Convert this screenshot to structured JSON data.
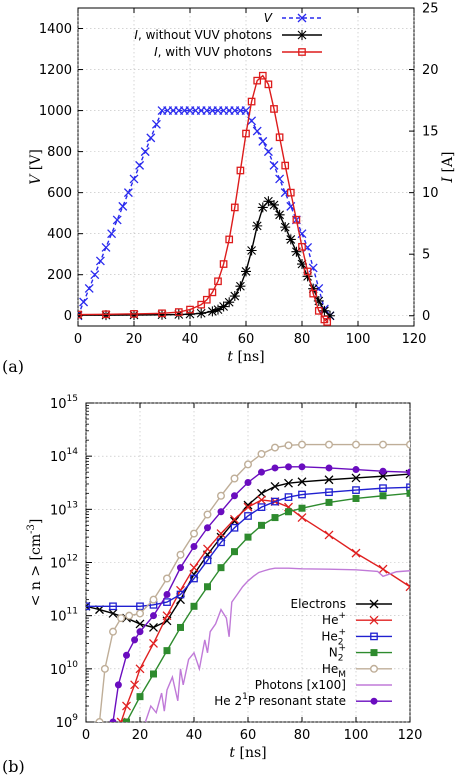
{
  "chart_data": [
    {
      "panel_label": "(a)",
      "type": "line",
      "xlabel_var": "t",
      "xlabel_unit": "[ns]",
      "ylabel_var": "V",
      "ylabel_unit": "[V]",
      "y2label_var": "I",
      "y2label_unit": "[A]",
      "xlim": [
        0,
        120
      ],
      "ylim": [
        -50,
        1500
      ],
      "y2lim": [
        -0.833,
        25
      ],
      "xticks": [
        0,
        20,
        40,
        60,
        80,
        100,
        120
      ],
      "yticks": [
        0,
        200,
        400,
        600,
        800,
        1000,
        1200,
        1400
      ],
      "y2ticks": [
        0,
        5,
        10,
        15,
        20,
        25
      ],
      "legend_position": "top-right",
      "series": [
        {
          "name": "V",
          "name_style": "italic",
          "axis": "left",
          "color": "#2a2aee",
          "dash": "dashed",
          "marker": "x",
          "x": [
            0,
            2,
            4,
            6,
            8,
            10,
            12,
            14,
            16,
            18,
            20,
            22,
            24,
            26,
            28,
            30,
            32,
            34,
            36,
            38,
            40,
            42,
            44,
            46,
            48,
            50,
            52,
            54,
            56,
            58,
            60,
            62,
            64,
            66,
            68,
            70,
            72,
            74,
            76,
            78,
            80,
            82,
            84,
            86,
            88,
            90
          ],
          "y": [
            0,
            67,
            133,
            200,
            267,
            333,
            400,
            467,
            533,
            600,
            667,
            733,
            800,
            867,
            933,
            1000,
            1000,
            1000,
            1000,
            1000,
            1000,
            1000,
            1000,
            1000,
            1000,
            1000,
            1000,
            1000,
            1000,
            1000,
            1000,
            950,
            900,
            850,
            800,
            733,
            667,
            600,
            533,
            467,
            400,
            333,
            233,
            133,
            33,
            0
          ]
        },
        {
          "name": "I, without VUV photons",
          "name_style": "italic-first",
          "axis": "right",
          "color": "#000000",
          "dash": "solid",
          "marker": "star",
          "x": [
            0,
            10,
            20,
            30,
            36,
            40,
            44,
            48,
            50,
            52,
            54,
            56,
            58,
            60,
            62,
            64,
            66,
            68,
            70,
            72,
            74,
            76,
            78,
            80,
            82,
            84,
            86,
            88,
            90
          ],
          "y": [
            0.05,
            0.05,
            0.06,
            0.08,
            0.1,
            0.13,
            0.2,
            0.35,
            0.5,
            0.75,
            1.1,
            1.6,
            2.4,
            3.6,
            5.3,
            7.3,
            8.8,
            9.3,
            9.0,
            8.2,
            7.2,
            6.2,
            5.2,
            4.2,
            3.2,
            2.2,
            1.2,
            0.4,
            0.0
          ]
        },
        {
          "name": "I, with VUV photons",
          "name_style": "italic-first",
          "axis": "right",
          "color": "#dd1c1c",
          "dash": "solid",
          "marker": "square",
          "x": [
            0,
            10,
            20,
            30,
            36,
            40,
            44,
            46,
            48,
            50,
            52,
            54,
            56,
            58,
            60,
            62,
            64,
            66,
            68,
            70,
            72,
            74,
            76,
            78,
            80,
            82,
            84,
            86,
            88,
            89
          ],
          "y": [
            0.1,
            0.12,
            0.15,
            0.2,
            0.3,
            0.5,
            0.9,
            1.3,
            1.9,
            2.8,
            4.2,
            6.2,
            8.8,
            11.8,
            14.8,
            17.4,
            19.1,
            19.5,
            18.8,
            16.8,
            14.5,
            12.2,
            10.0,
            7.8,
            5.6,
            3.6,
            1.8,
            0.4,
            -0.3,
            -0.5
          ]
        }
      ]
    },
    {
      "panel_label": "(b)",
      "type": "line",
      "yscale": "log",
      "xlabel_var": "t",
      "xlabel_unit": "[ns]",
      "ylabel_text": "< n > [cm",
      "ylabel_sup": "-3",
      "ylabel_close": "]",
      "xlim": [
        0,
        120
      ],
      "ylim": [
        1000000000.0,
        1000000000000000.0
      ],
      "xticks": [
        0,
        20,
        40,
        60,
        80,
        100,
        120
      ],
      "ytick_base": "10",
      "ytick_exponents": [
        9,
        10,
        11,
        12,
        13,
        14,
        15
      ],
      "legend_position": "bottom-right",
      "series": [
        {
          "name": "Electrons",
          "color": "#000000",
          "marker": "x",
          "x": [
            0,
            5,
            10,
            15,
            20,
            25,
            30,
            35,
            40,
            45,
            50,
            55,
            60,
            65,
            70,
            75,
            80,
            90,
            100,
            110,
            120
          ],
          "y": [
            150000000000.0,
            130000000000.0,
            110000000000.0,
            90000000000.0,
            70000000000.0,
            60000000000.0,
            80000000000.0,
            200000000000.0,
            600000000000.0,
            1400000000000.0,
            3000000000000.0,
            6000000000000.0,
            12000000000000.0,
            20000000000000.0,
            27000000000000.0,
            31000000000000.0,
            33000000000000.0,
            36000000000000.0,
            39000000000000.0,
            42000000000000.0,
            46000000000000.0
          ]
        },
        {
          "name": "He+",
          "name_base": "He",
          "name_sup": "+",
          "color": "#e02020",
          "marker": "x",
          "x": [
            13,
            15,
            18,
            20,
            25,
            30,
            35,
            40,
            45,
            50,
            55,
            60,
            65,
            70,
            75,
            80,
            90,
            100,
            110,
            120
          ],
          "y": [
            1000000000.0,
            2000000000.0,
            5000000000.0,
            10000000000.0,
            30000000000.0,
            100000000000.0,
            300000000000.0,
            800000000000.0,
            1800000000000.0,
            3500000000000.0,
            6500000000000.0,
            11000000000000.0,
            15000000000000.0,
            14000000000000.0,
            11000000000000.0,
            7000000000000.0,
            3300000000000.0,
            1500000000000.0,
            750000000000.0,
            350000000000.0
          ]
        },
        {
          "name": "He2+",
          "name_base": "He",
          "name_sub": "2",
          "name_sup": "+",
          "color": "#2020d0",
          "marker": "square",
          "x": [
            0,
            10,
            20,
            25,
            30,
            35,
            40,
            45,
            50,
            55,
            60,
            65,
            70,
            75,
            80,
            90,
            100,
            110,
            120
          ],
          "y": [
            150000000000.0,
            150000000000.0,
            150000000000.0,
            160000000000.0,
            180000000000.0,
            250000000000.0,
            500000000000.0,
            1100000000000.0,
            2400000000000.0,
            4500000000000.0,
            7500000000000.0,
            11000000000000.0,
            14000000000000.0,
            17000000000000.0,
            19000000000000.0,
            21000000000000.0,
            23000000000000.0,
            25000000000000.0,
            26000000000000.0
          ]
        },
        {
          "name": "N2+",
          "name_base": "N",
          "name_sub": "2",
          "name_sup": "+",
          "color": "#2e8b2e",
          "marker": "square-filled",
          "x": [
            15,
            20,
            25,
            30,
            35,
            40,
            45,
            50,
            55,
            60,
            65,
            70,
            75,
            80,
            90,
            100,
            110,
            120
          ],
          "y": [
            1000000000.0,
            3000000000.0,
            8000000000.0,
            22000000000.0,
            60000000000.0,
            150000000000.0,
            350000000000.0,
            800000000000.0,
            1600000000000.0,
            3000000000000.0,
            5000000000000.0,
            7000000000000.0,
            9000000000000.0,
            10500000000000.0,
            13500000000000.0,
            16000000000000.0,
            18000000000000.0,
            20000000000000.0
          ]
        },
        {
          "name": "HeM",
          "name_base": "He",
          "name_sub": "M",
          "color": "#bfae98",
          "marker": "circle-open",
          "x": [
            5,
            7,
            10,
            13,
            16,
            20,
            25,
            30,
            35,
            40,
            45,
            50,
            55,
            60,
            65,
            70,
            75,
            80,
            90,
            100,
            110,
            120
          ],
          "y": [
            1000000000.0,
            10000000000.0,
            50000000000.0,
            90000000000.0,
            100000000000.0,
            110000000000.0,
            200000000000.0,
            500000000000.0,
            1400000000000.0,
            3500000000000.0,
            8000000000000.0,
            18000000000000.0,
            38000000000000.0,
            70000000000000.0,
            110000000000000.0,
            145000000000000.0,
            160000000000000.0,
            165000000000000.0,
            165000000000000.0,
            165000000000000.0,
            165000000000000.0,
            165000000000000.0
          ]
        },
        {
          "name": "Photons [x100]",
          "color": "#c07ad8",
          "marker": "none",
          "x": [
            22,
            24,
            26,
            28,
            29,
            30,
            32,
            34,
            35,
            36,
            38,
            40,
            42,
            44,
            45,
            46,
            48,
            50,
            52,
            53,
            54,
            56,
            58,
            60,
            62,
            64,
            66,
            68,
            70,
            75,
            80,
            90,
            100,
            108,
            110,
            115,
            120
          ],
          "y": [
            1000000000.0,
            2000000000.0,
            1500000000.0,
            3500000000.0,
            1600000000.0,
            4000000000.0,
            7000000000.0,
            2500000000.0,
            10000000000.0,
            5000000000.0,
            15000000000.0,
            20000000000.0,
            10000000000.0,
            35000000000.0,
            20000000000.0,
            50000000000.0,
            70000000000.0,
            130000000000.0,
            90000000000.0,
            40000000000.0,
            180000000000.0,
            250000000000.0,
            350000000000.0,
            450000000000.0,
            550000000000.0,
            650000000000.0,
            700000000000.0,
            750000000000.0,
            780000000000.0,
            780000000000.0,
            760000000000.0,
            750000000000.0,
            730000000000.0,
            680000000000.0,
            550000000000.0,
            670000000000.0,
            700000000000.0
          ]
        },
        {
          "name": "He 2^1P resonant state",
          "name_base": "He 2",
          "name_sup": "1",
          "name_rest": "P resonant state",
          "color": "#6a0dbf",
          "marker": "circle-filled",
          "x": [
            10,
            12,
            15,
            18,
            20,
            25,
            30,
            35,
            40,
            45,
            50,
            55,
            60,
            65,
            70,
            75,
            80,
            90,
            100,
            110,
            120
          ],
          "y": [
            1000000000.0,
            5000000000.0,
            18000000000.0,
            35000000000.0,
            50000000000.0,
            100000000000.0,
            250000000000.0,
            800000000000.0,
            2000000000000.0,
            4500000000000.0,
            9000000000000.0,
            18000000000000.0,
            32000000000000.0,
            50000000000000.0,
            60000000000000.0,
            63000000000000.0,
            63000000000000.0,
            60000000000000.0,
            56000000000000.0,
            52000000000000.0,
            50000000000000.0
          ]
        }
      ]
    }
  ]
}
